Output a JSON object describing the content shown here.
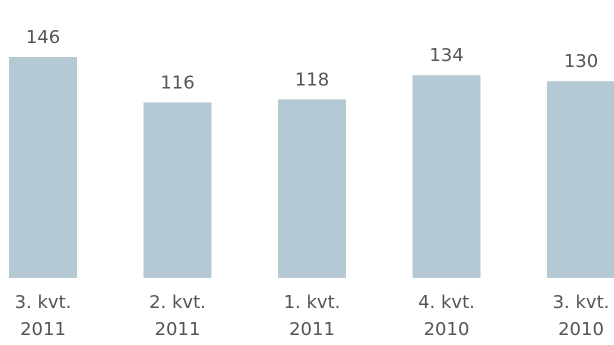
{
  "chart_data": {
    "type": "bar",
    "title": "",
    "xlabel": "",
    "ylabel": "",
    "categories": [
      [
        "3. kvt.",
        "2011"
      ],
      [
        "2. kvt.",
        "2011"
      ],
      [
        "1. kvt.",
        "2011"
      ],
      [
        "4. kvt.",
        "2010"
      ],
      [
        "3. kvt.",
        "2010"
      ]
    ],
    "values": [
      146,
      116,
      118,
      134,
      130
    ],
    "value_labels": [
      "146",
      "116",
      "118",
      "134",
      "130"
    ],
    "ylim": [
      0,
      146
    ],
    "grid": false,
    "legend": "none",
    "bar_color": "#b5c9d5"
  }
}
